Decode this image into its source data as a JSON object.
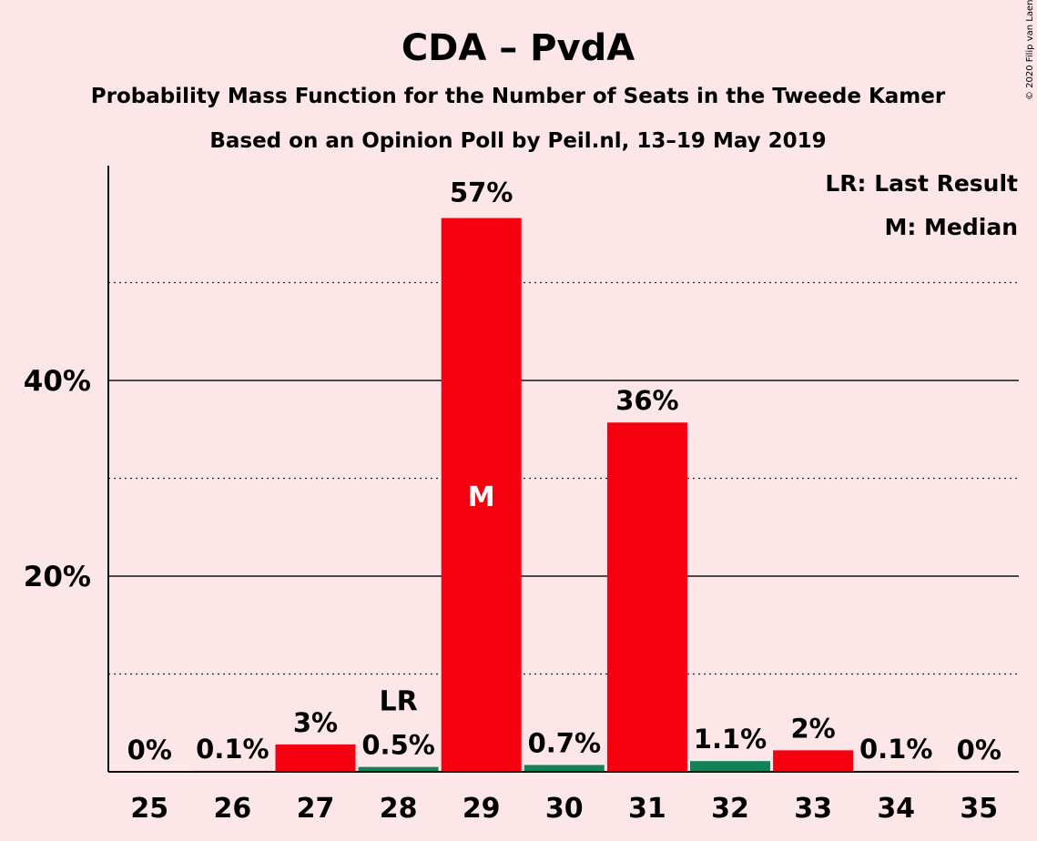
{
  "chart_data": {
    "type": "bar",
    "title": "CDA – PvdA",
    "subtitle": "Probability Mass Function for the Number of Seats in the Tweede Kamer",
    "subtitle2": "Based on an Opinion Poll by Peil.nl, 13–19 May 2019",
    "copyright": "© 2020 Filip van Laenen",
    "legend": [
      "LR: Last Result",
      "M: Median"
    ],
    "legend_position": "top-right",
    "categories": [
      "25",
      "26",
      "27",
      "28",
      "29",
      "30",
      "31",
      "32",
      "33",
      "34",
      "35"
    ],
    "values": [
      0,
      0.1,
      2.8,
      0.5,
      56.6,
      0.7,
      35.7,
      1.1,
      2.2,
      0.1,
      0
    ],
    "labels": [
      "0%",
      "0.1%",
      "3%",
      "0.5%",
      "57%",
      "0.7%",
      "36%",
      "1.1%",
      "2%",
      "0.1%",
      "0%"
    ],
    "colors": [
      "#f5000f",
      "#f5000f",
      "#f5000f",
      "#138259",
      "#f5000f",
      "#138259",
      "#f5000f",
      "#138259",
      "#f5000f",
      "#f5000f",
      "#f5000f"
    ],
    "markers": {
      "last_result": "28",
      "median": "29"
    },
    "marker_labels": {
      "last_result": "LR",
      "median": "M"
    },
    "yticks": [
      20,
      40
    ],
    "ytick_labels": [
      "20%",
      "40%"
    ],
    "minor_gridlines": [
      10,
      30,
      50
    ],
    "ylim": [
      0,
      62
    ],
    "grid": true,
    "xlabel": "",
    "ylabel": ""
  }
}
